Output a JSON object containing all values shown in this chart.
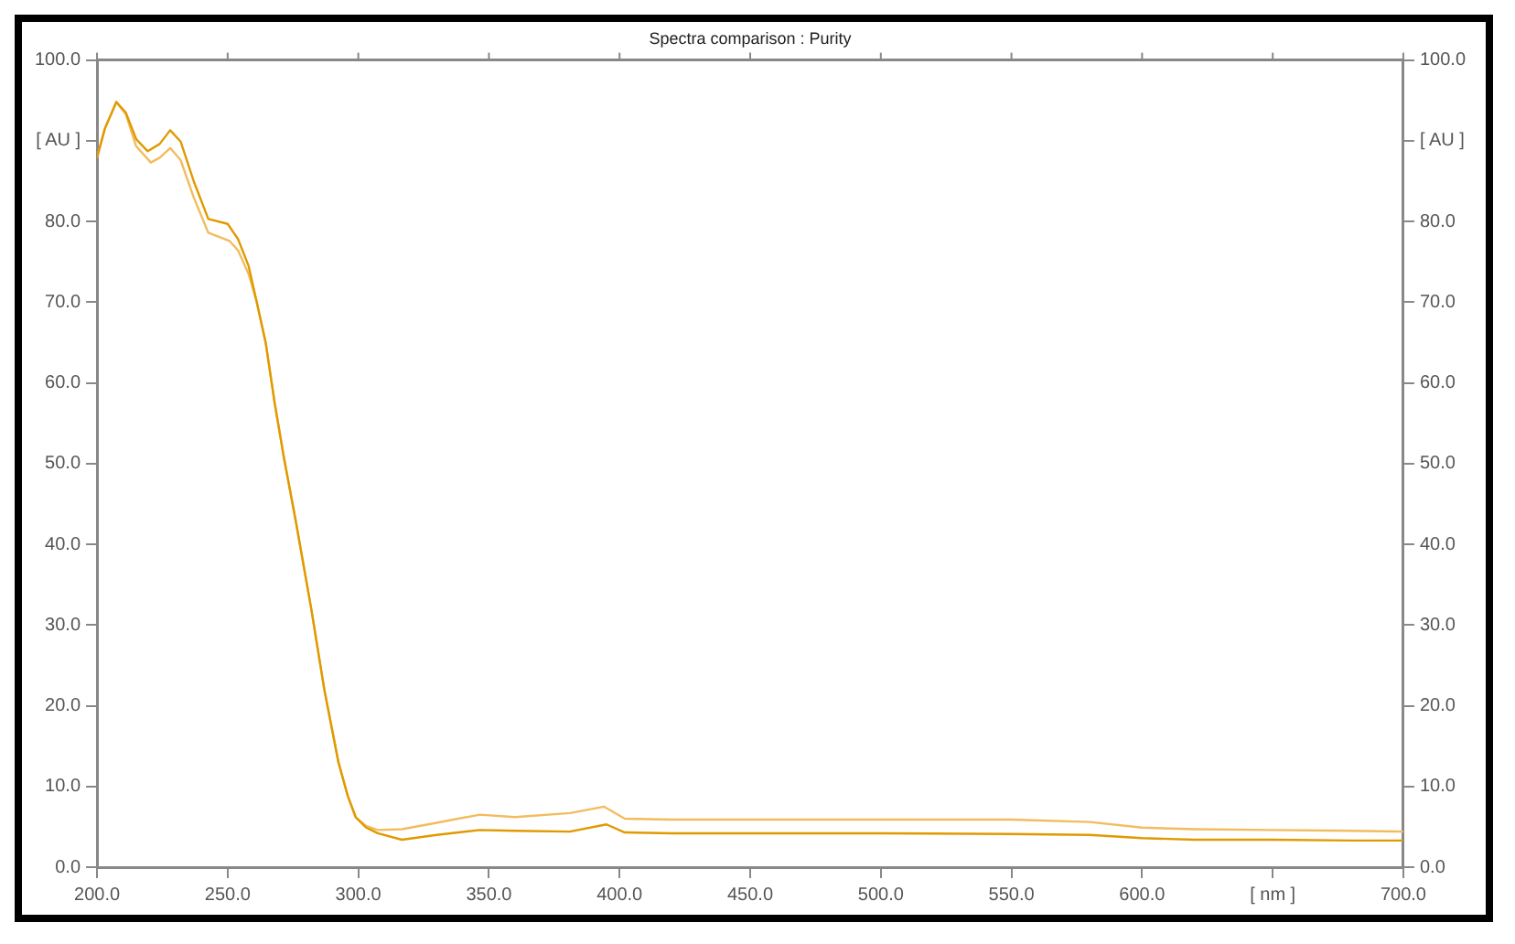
{
  "chart_data": {
    "type": "line",
    "title": "Spectra comparison : Purity",
    "series": [
      {
        "color": "#e09a00",
        "x": [
          200,
          203,
          207.4,
          211,
          215,
          219.4,
          224,
          228,
          232,
          237,
          242.6,
          250,
          254,
          258,
          261,
          264.6,
          268,
          271.5,
          276,
          282,
          287,
          292.4,
          296,
          299,
          303,
          307.4,
          316.7,
          330,
          346.5,
          360,
          381,
          395,
          402,
          420,
          450,
          500,
          550,
          580,
          600,
          620,
          650,
          680,
          700
        ],
        "values": [
          87.9,
          91.5,
          94.8,
          93.5,
          90.2,
          88.7,
          89.6,
          91.3,
          89.9,
          85,
          80.3,
          79.7,
          77.8,
          74.5,
          70.2,
          64.9,
          57.5,
          50.8,
          43,
          32,
          22,
          13,
          8.8,
          6.2,
          4.9,
          4.2,
          3.4,
          4.0,
          4.6,
          4.5,
          4.4,
          5.3,
          4.3,
          4.2,
          4.2,
          4.2,
          4.1,
          4.0,
          3.6,
          3.4,
          3.4,
          3.3,
          3.3
        ]
      },
      {
        "color": "#f2bc5e",
        "x": [
          200,
          203,
          207.4,
          211,
          215,
          220.6,
          224,
          228,
          232,
          237,
          242.6,
          250.7,
          254,
          258,
          261,
          264.6,
          268,
          271.5,
          276,
          282,
          287,
          292.4,
          296,
          299,
          303,
          307.4,
          316.7,
          330,
          346.5,
          360,
          381,
          394,
          402,
          420,
          450,
          500,
          550,
          580,
          600,
          620,
          650,
          680,
          700
        ],
        "values": [
          87.9,
          91.5,
          94.8,
          93.3,
          89.3,
          87.3,
          87.9,
          89.1,
          87.6,
          83,
          78.6,
          77.6,
          76.4,
          73.5,
          70.2,
          64.9,
          57.5,
          50.8,
          43,
          32,
          22,
          13,
          8.8,
          6.2,
          5.1,
          4.6,
          4.7,
          5.5,
          6.5,
          6.2,
          6.7,
          7.5,
          6.0,
          5.9,
          5.9,
          5.9,
          5.9,
          5.6,
          4.9,
          4.7,
          4.6,
          4.5,
          4.4
        ]
      }
    ],
    "xlim": [
      200,
      700
    ],
    "xticks": [
      {
        "value": 200,
        "label": "200.0"
      },
      {
        "value": 250,
        "label": "250.0"
      },
      {
        "value": 300,
        "label": "300.0"
      },
      {
        "value": 350,
        "label": "350.0"
      },
      {
        "value": 400,
        "label": "400.0"
      },
      {
        "value": 450,
        "label": "450.0"
      },
      {
        "value": 500,
        "label": "500.0"
      },
      {
        "value": 550,
        "label": "550.0"
      },
      {
        "value": 600,
        "label": "600.0"
      },
      {
        "value": 650,
        "label": "[ nm ]"
      },
      {
        "value": 700,
        "label": "700.0"
      }
    ],
    "ylim": [
      0,
      100
    ],
    "yticks": [
      {
        "value": 0,
        "label": "0.0"
      },
      {
        "value": 10,
        "label": "10.0"
      },
      {
        "value": 20,
        "label": "20.0"
      },
      {
        "value": 30,
        "label": "30.0"
      },
      {
        "value": 40,
        "label": "40.0"
      },
      {
        "value": 50,
        "label": "50.0"
      },
      {
        "value": 60,
        "label": "60.0"
      },
      {
        "value": 70,
        "label": "70.0"
      },
      {
        "value": 80,
        "label": "80.0"
      },
      {
        "value": 90,
        "label": "[ AU ]"
      },
      {
        "value": 100,
        "label": "100.0"
      }
    ],
    "y2lim": [
      0,
      100
    ],
    "y2ticks": [
      {
        "value": 0,
        "label": "0.0"
      },
      {
        "value": 10,
        "label": "10.0"
      },
      {
        "value": 20,
        "label": "20.0"
      },
      {
        "value": 30,
        "label": "30.0"
      },
      {
        "value": 40,
        "label": "40.0"
      },
      {
        "value": 50,
        "label": "50.0"
      },
      {
        "value": 60,
        "label": "60.0"
      },
      {
        "value": 70,
        "label": "70.0"
      },
      {
        "value": 80,
        "label": "80.0"
      },
      {
        "value": 90,
        "label": "[ AU ]"
      },
      {
        "value": 100,
        "label": "100.0"
      }
    ],
    "grid": false,
    "legend": false,
    "marker": "none",
    "line_style": "solid"
  }
}
